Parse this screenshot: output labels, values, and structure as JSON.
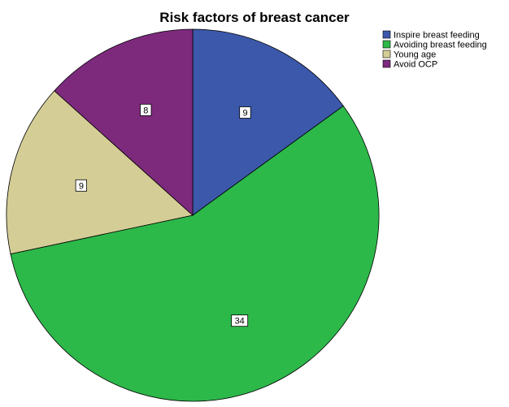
{
  "chart_data": {
    "type": "pie",
    "title": "Risk factors of breast cancer",
    "categories": [
      "Inspire breast feeding",
      "Avoiding breast feeding",
      "Young age",
      "Avoid OCP"
    ],
    "values": [
      9,
      34,
      9,
      8
    ],
    "colors": [
      "#3c58aa",
      "#2db84a",
      "#d4cd96",
      "#7d2a7d"
    ],
    "legend": "top-right",
    "start": "12 o'clock",
    "direction": "clockwise"
  }
}
